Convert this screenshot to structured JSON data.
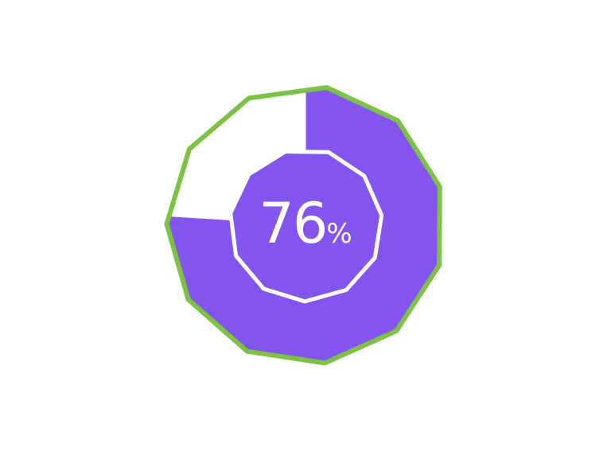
{
  "progress": {
    "value_percent": 76,
    "number": "76",
    "unit": "%"
  },
  "colors": {
    "fill": "#8355ee",
    "border": "#7cc243",
    "track": "#ffffff",
    "inner_stroke": "#ffffff",
    "text": "#ffffff"
  }
}
